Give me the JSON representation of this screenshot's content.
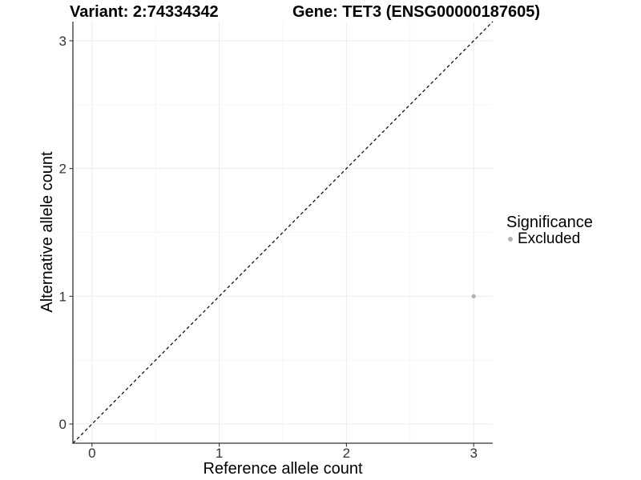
{
  "chart_data": {
    "type": "scatter",
    "title_variant": "Variant: 2:74334342",
    "title_gene": "Gene: TET3 (ENSG00000187605)",
    "xlabel": "Reference allele count",
    "ylabel": "Alternative allele count",
    "xlim": [
      -0.15,
      3.15
    ],
    "ylim": [
      -0.15,
      3.15
    ],
    "x_ticks": [
      0,
      1,
      2,
      3
    ],
    "y_ticks": [
      0,
      1,
      2,
      3
    ],
    "x_minor_ticks": [
      0.5,
      1.5,
      2.5
    ],
    "y_minor_ticks": [
      0.5,
      1.5,
      2.5
    ],
    "grid": "major+minor",
    "reference_line": {
      "type": "identity",
      "style": "dashed",
      "color": "#000000"
    },
    "series": [
      {
        "name": "Excluded",
        "color": "#b3b3b3",
        "point_radius": 2.7,
        "points": [
          {
            "x": 3,
            "y": 1
          }
        ]
      }
    ],
    "legend": {
      "title": "Significance",
      "position": "right",
      "entries": [
        {
          "label": "Excluded",
          "color": "#b3b3b3"
        }
      ]
    }
  },
  "colors": {
    "background": "#ffffff",
    "grid_major": "#ebebeb",
    "grid_minor": "#f5f5f5",
    "axis_line": "#333333",
    "tick_label": "#333333",
    "title_text": "#000000"
  }
}
